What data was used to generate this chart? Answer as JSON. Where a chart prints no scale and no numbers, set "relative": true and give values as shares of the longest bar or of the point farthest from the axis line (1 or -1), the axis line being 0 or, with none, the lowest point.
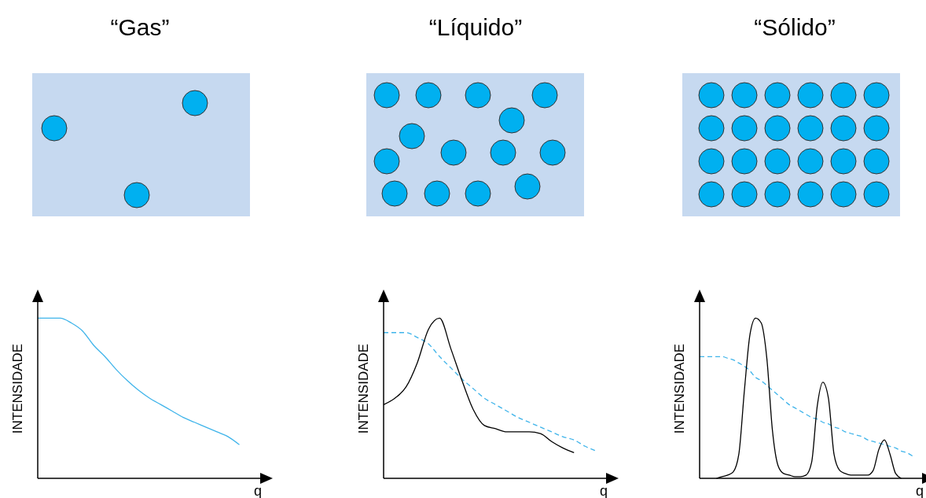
{
  "chart_data": [
    {
      "type": "line",
      "title": "“Gas”",
      "xlabel": "q",
      "ylabel": "INTENSIDADE",
      "relative": true,
      "categories": [
        null,
        null,
        null,
        null,
        null,
        null,
        null,
        null,
        null,
        null,
        null,
        null,
        null,
        null,
        null,
        null,
        null,
        null,
        null,
        null,
        null
      ],
      "series": [
        {
          "color": "#3fb4ea",
          "line_style": "solid",
          "values": [
            1.0,
            1.0,
            1.0,
            0.97,
            0.92,
            0.83,
            0.76,
            0.68,
            0.61,
            0.55,
            0.5,
            0.46,
            0.42,
            0.38,
            0.35,
            0.32,
            0.29,
            0.26,
            0.21,
            null,
            null
          ]
        }
      ]
    },
    {
      "type": "line",
      "title": "“Líquido”",
      "xlabel": "q",
      "ylabel": "INTENSIDADE",
      "relative": true,
      "categories": [
        null,
        null,
        null,
        null,
        null,
        null,
        null,
        null,
        null,
        null,
        null,
        null,
        null,
        null,
        null,
        null,
        null,
        null,
        null,
        null,
        null
      ],
      "series": [
        {
          "color": "#3fb4ea",
          "line_style": "dashed",
          "values": [
            0.91,
            0.91,
            0.91,
            0.88,
            0.84,
            0.76,
            0.69,
            0.62,
            0.56,
            0.5,
            0.46,
            0.42,
            0.38,
            0.35,
            0.32,
            0.29,
            0.26,
            0.24,
            0.2,
            0.17,
            null
          ]
        },
        {
          "color": "#000000",
          "line_style": "solid",
          "values": [
            0.46,
            0.5,
            0.57,
            0.72,
            0.93,
            1.0,
            0.81,
            0.61,
            0.43,
            0.33,
            0.31,
            0.29,
            0.29,
            0.29,
            0.28,
            0.23,
            0.19,
            0.16,
            null,
            null,
            null
          ]
        }
      ]
    },
    {
      "type": "line",
      "title": "“Sólido”",
      "xlabel": "q",
      "ylabel": "INTENSIDADE",
      "relative": true,
      "categories": [
        null,
        null,
        null,
        null,
        null,
        null,
        null,
        null,
        null,
        null,
        null,
        null,
        null,
        null,
        null,
        null,
        null,
        null,
        null,
        null,
        null,
        null,
        null,
        null,
        null,
        null,
        null,
        null,
        null,
        null,
        null,
        null,
        null,
        null,
        null,
        null,
        null,
        null,
        null,
        null,
        null
      ],
      "series": [
        {
          "color": "#3fb4ea",
          "line_style": "dashed",
          "values": [
            0.76,
            0.76,
            0.76,
            0.76,
            0.76,
            0.75,
            0.74,
            0.72,
            0.7,
            0.67,
            0.63,
            0.61,
            0.58,
            0.55,
            0.52,
            0.49,
            0.46,
            0.44,
            0.42,
            0.4,
            0.38,
            0.37,
            0.35,
            0.34,
            0.32,
            0.31,
            0.29,
            0.28,
            0.27,
            0.26,
            0.24,
            0.23,
            0.22,
            0.21,
            0.2,
            0.19,
            0.17,
            0.16,
            0.14,
            null,
            null
          ]
        },
        {
          "color": "#000000",
          "line_style": "solid",
          "values": [
            null,
            null,
            null,
            0,
            0.01,
            0.02,
            0.04,
            0.15,
            0.55,
            0.9,
            1.0,
            0.97,
            0.75,
            0.3,
            0.08,
            0.03,
            0.02,
            0.01,
            0.01,
            0.02,
            0.1,
            0.45,
            0.6,
            0.5,
            0.15,
            0.05,
            0.03,
            0.02,
            0.02,
            0.02,
            0.02,
            0.05,
            0.18,
            0.24,
            0.15,
            0.03,
            0,
            null,
            null,
            null,
            null
          ]
        }
      ]
    }
  ]
}
